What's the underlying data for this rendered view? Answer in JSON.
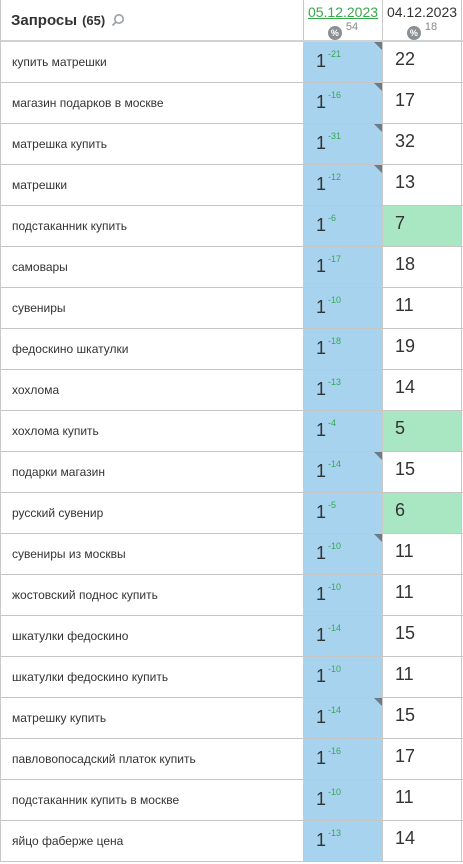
{
  "header": {
    "title": "Запросы",
    "count": "(65)",
    "search_icon": "search-icon",
    "date1": {
      "label": "05.12.2023",
      "pct_badge": "%",
      "value": "54"
    },
    "date2": {
      "label": "04.12.2023",
      "pct_badge": "%",
      "value": "18"
    }
  },
  "colors": {
    "current_position_bg": "#a8d3ef",
    "highlight_bg": "#a9e6c2",
    "date_link": "#38a94a",
    "delta_text": "#34a853"
  },
  "rows": [
    {
      "query": "купить матрешки",
      "pos": "1",
      "delta": "-21",
      "prev": "22",
      "corner": true,
      "highlight": false
    },
    {
      "query": "магазин подарков в москве",
      "pos": "1",
      "delta": "-16",
      "prev": "17",
      "corner": true,
      "highlight": false
    },
    {
      "query": "матрешка купить",
      "pos": "1",
      "delta": "-31",
      "prev": "32",
      "corner": true,
      "highlight": false
    },
    {
      "query": "матрешки",
      "pos": "1",
      "delta": "-12",
      "prev": "13",
      "corner": true,
      "highlight": false
    },
    {
      "query": "подстаканник купить",
      "pos": "1",
      "delta": "-6",
      "prev": "7",
      "corner": false,
      "highlight": true
    },
    {
      "query": "самовары",
      "pos": "1",
      "delta": "-17",
      "prev": "18",
      "corner": false,
      "highlight": false
    },
    {
      "query": "сувениры",
      "pos": "1",
      "delta": "-10",
      "prev": "11",
      "corner": false,
      "highlight": false
    },
    {
      "query": "федоскино шкатулки",
      "pos": "1",
      "delta": "-18",
      "prev": "19",
      "corner": false,
      "highlight": false
    },
    {
      "query": "хохлома",
      "pos": "1",
      "delta": "-13",
      "prev": "14",
      "corner": false,
      "highlight": false
    },
    {
      "query": "хохлома купить",
      "pos": "1",
      "delta": "-4",
      "prev": "5",
      "corner": false,
      "highlight": true
    },
    {
      "query": "подарки магазин",
      "pos": "1",
      "delta": "-14",
      "prev": "15",
      "corner": true,
      "highlight": false
    },
    {
      "query": "русский сувенир",
      "pos": "1",
      "delta": "-5",
      "prev": "6",
      "corner": false,
      "highlight": true
    },
    {
      "query": "сувениры из москвы",
      "pos": "1",
      "delta": "-10",
      "prev": "11",
      "corner": true,
      "highlight": false
    },
    {
      "query": "жостовский поднос купить",
      "pos": "1",
      "delta": "-10",
      "prev": "11",
      "corner": false,
      "highlight": false
    },
    {
      "query": "шкатулки федоскино",
      "pos": "1",
      "delta": "-14",
      "prev": "15",
      "corner": false,
      "highlight": false
    },
    {
      "query": "шкатулки федоскино купить",
      "pos": "1",
      "delta": "-10",
      "prev": "11",
      "corner": false,
      "highlight": false
    },
    {
      "query": "матрешку купить",
      "pos": "1",
      "delta": "-14",
      "prev": "15",
      "corner": true,
      "highlight": false
    },
    {
      "query": "павловопосадский платок купить",
      "pos": "1",
      "delta": "-16",
      "prev": "17",
      "corner": false,
      "highlight": false
    },
    {
      "query": "подстаканник купить в москве",
      "pos": "1",
      "delta": "-10",
      "prev": "11",
      "corner": false,
      "highlight": false
    },
    {
      "query": "яйцо фаберже цена",
      "pos": "1",
      "delta": "-13",
      "prev": "14",
      "corner": false,
      "highlight": false
    }
  ]
}
